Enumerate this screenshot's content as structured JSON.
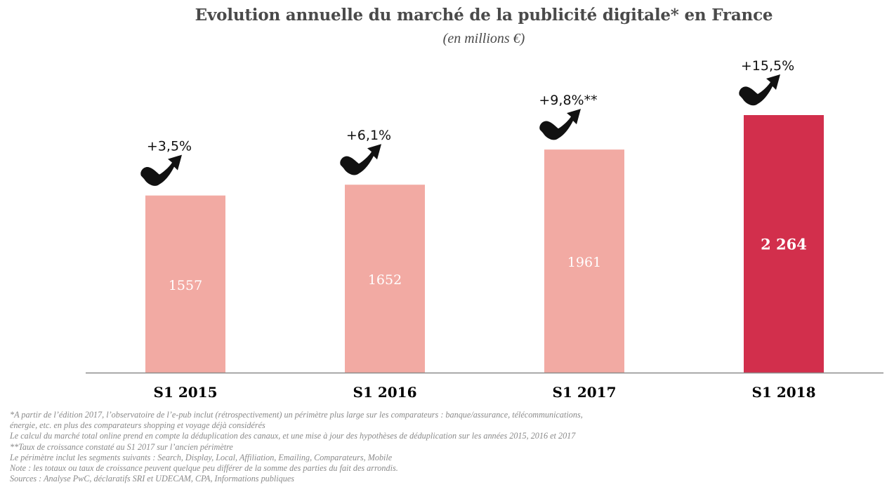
{
  "chart_data": {
    "type": "bar",
    "title": "Evolution annuelle du marché de la publicité digitale* en France",
    "subtitle": "(en millions €)",
    "categories": [
      "S1 2015",
      "S1 2016",
      "S1 2017",
      "S1 2018"
    ],
    "values": [
      1557,
      1652,
      1961,
      2264
    ],
    "value_labels": [
      "1557",
      "1652",
      "1961",
      "2 264"
    ],
    "growth_labels": [
      "+3,5%",
      "+6,1%",
      "+9,8%**",
      "+15,5%"
    ],
    "ylim": [
      0,
      2264
    ],
    "grid": false,
    "colors": {
      "bar": "#f2aaa3",
      "bar_highlight": "#d22f4c",
      "axis": "#8c8c8c",
      "arrow": "#111111"
    }
  },
  "footnotes": [
    "*A partir de l’édition 2017, l’observatoire de l’e-pub inclut (rétrospectivement) un périmètre plus large sur les comparateurs : banque/assurance, télécommunications,",
    "énergie, etc. en plus des comparateurs shopping et voyage déjà considérés",
    "Le calcul du marché total online prend en compte la déduplication des canaux, et une mise à jour des hypothèses de déduplication sur les années 2015, 2016 et 2017",
    "**Taux de croissance constaté au S1 2017 sur l’ancien périmètre",
    "Le périmètre inclut les segments suivants : Search, Display, Local, Affiliation, Emailing, Comparateurs, Mobile",
    "Note : les totaux ou taux de croissance peuvent quelque peu différer de la somme des parties du fait des arrondis.",
    "Sources : Analyse PwC, déclaratifs SRI et UDECAM, CPA, Informations publiques"
  ]
}
